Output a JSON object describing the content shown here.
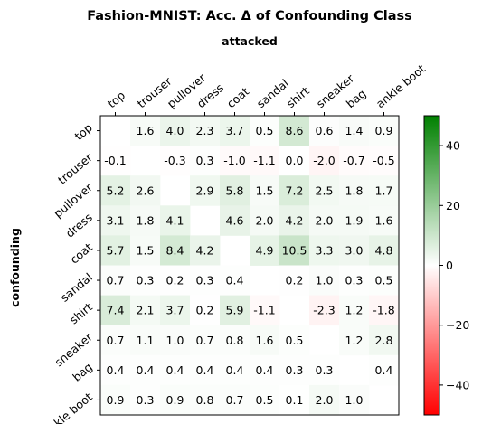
{
  "chart_data": {
    "type": "heatmap",
    "title": "Fashion-MNIST: Acc. Δ of Confounding Class",
    "xlabel": "attacked",
    "ylabel": "confounding",
    "x_categories": [
      "top",
      "trouser",
      "pullover",
      "dress",
      "coat",
      "sandal",
      "shirt",
      "sneaker",
      "bag",
      "ankle boot"
    ],
    "y_categories": [
      "top",
      "trouser",
      "pullover",
      "dress",
      "coat",
      "sandal",
      "shirt",
      "sneaker",
      "bag",
      "ankle boot"
    ],
    "values": [
      [
        null,
        1.6,
        4.0,
        2.3,
        3.7,
        0.5,
        8.6,
        0.6,
        1.4,
        0.9
      ],
      [
        -0.1,
        null,
        -0.3,
        0.3,
        -1.0,
        -1.1,
        0.0,
        -2.0,
        -0.7,
        -0.5
      ],
      [
        5.2,
        2.6,
        null,
        2.9,
        5.8,
        1.5,
        7.2,
        2.5,
        1.8,
        1.7
      ],
      [
        3.1,
        1.8,
        4.1,
        null,
        4.6,
        2.0,
        4.2,
        2.0,
        1.9,
        1.6
      ],
      [
        5.7,
        1.5,
        8.4,
        4.2,
        null,
        4.9,
        10.5,
        3.3,
        3.0,
        4.8
      ],
      [
        0.7,
        0.3,
        0.2,
        0.3,
        0.4,
        null,
        0.2,
        1.0,
        0.3,
        0.5
      ],
      [
        7.4,
        2.1,
        3.7,
        0.2,
        5.9,
        -1.1,
        null,
        -2.3,
        1.2,
        -1.8
      ],
      [
        0.7,
        1.1,
        1.0,
        0.7,
        0.8,
        1.6,
        0.5,
        null,
        1.2,
        2.8
      ],
      [
        0.4,
        0.4,
        0.4,
        0.4,
        0.4,
        0.4,
        0.3,
        0.3,
        null,
        0.4
      ],
      [
        0.9,
        0.3,
        0.9,
        0.8,
        0.7,
        0.5,
        0.1,
        2.0,
        1.0,
        null
      ]
    ],
    "colorbar": {
      "range": [
        -50,
        50
      ],
      "ticks": [
        40,
        20,
        0,
        -20,
        -40
      ],
      "colors": {
        "low": "#ff0000",
        "mid": "#ffffff",
        "high": "#008000"
      }
    },
    "grid": false,
    "legend": "colorbar-right"
  }
}
